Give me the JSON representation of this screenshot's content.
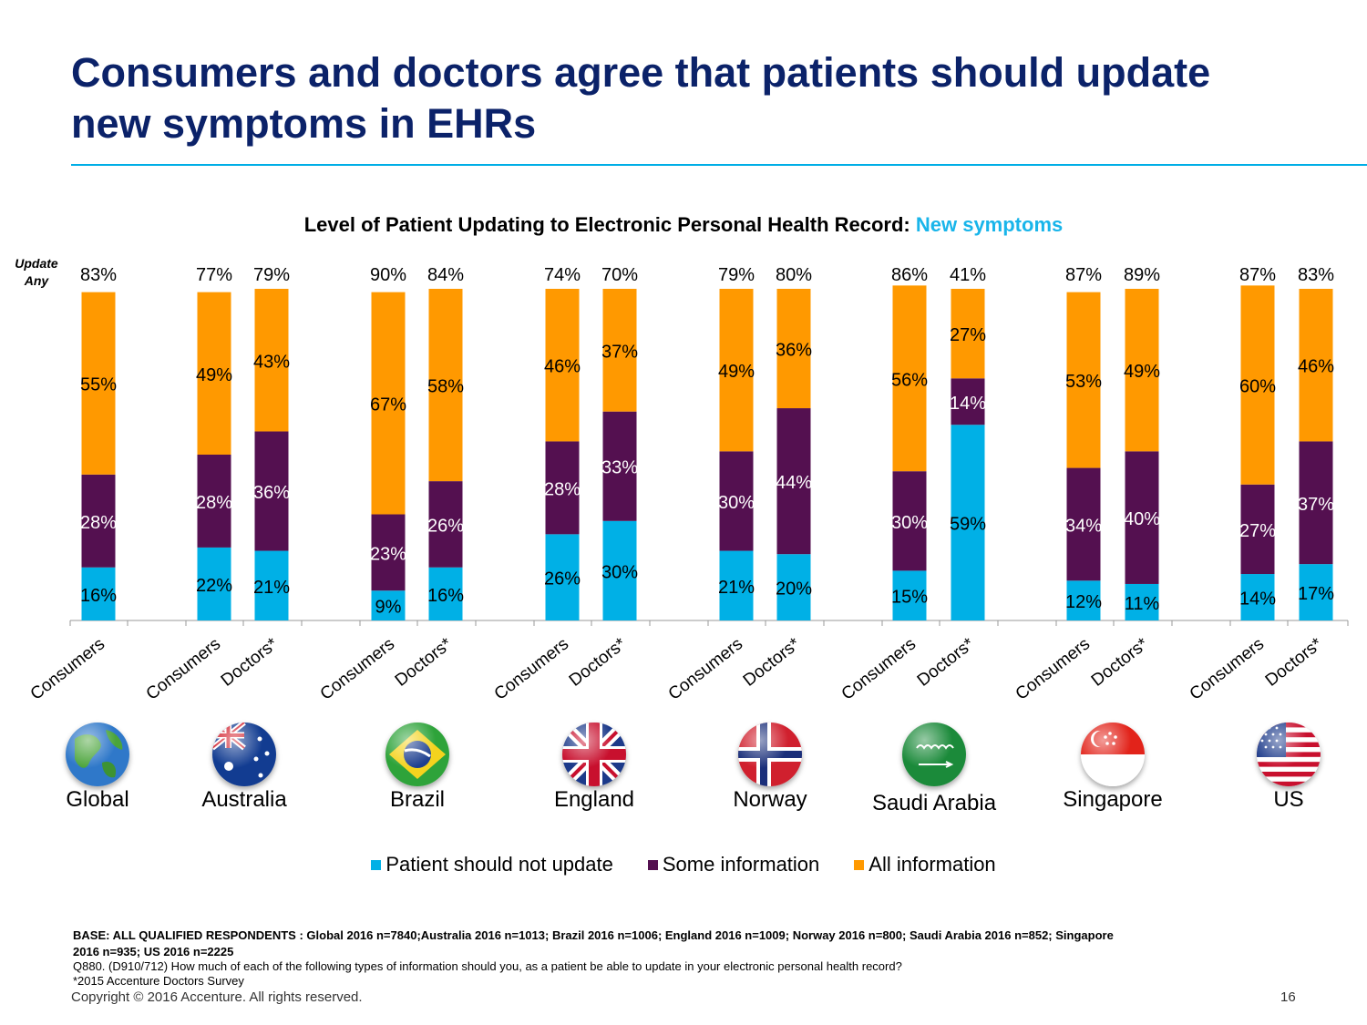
{
  "title": "Consumers and doctors agree that patients should update new symptoms in EHRs",
  "subtitle_prefix": "Level of Patient Updating to Electronic Personal Health Record: ",
  "subtitle_highlight": "New symptoms",
  "update_any_label": [
    "Update",
    "Any"
  ],
  "colors": {
    "not_update": "#00b0e6",
    "some": "#541050",
    "all": "#ff9900",
    "title": "#0b2269",
    "rule": "#00aee6"
  },
  "legend": [
    "Patient should not update",
    "Some information",
    "All information"
  ],
  "chart_data": {
    "type": "bar",
    "stacked": true,
    "ylim": [
      0,
      100
    ],
    "grid": false,
    "legend_position": "bottom",
    "series": [
      {
        "name": "Patient should not update"
      },
      {
        "name": "Some information"
      },
      {
        "name": "All information"
      }
    ],
    "groups": [
      {
        "country": "Global",
        "flag": "globe-icon",
        "bars": [
          {
            "label": "Consumers",
            "total": "83%",
            "values": [
              16,
              28,
              55
            ]
          }
        ]
      },
      {
        "country": "Australia",
        "flag": "australia-flag-icon",
        "bars": [
          {
            "label": "Consumers",
            "total": "77%",
            "values": [
              22,
              28,
              49
            ]
          },
          {
            "label": "Doctors*",
            "total": "79%",
            "values": [
              21,
              36,
              43
            ]
          }
        ]
      },
      {
        "country": "Brazil",
        "flag": "brazil-flag-icon",
        "bars": [
          {
            "label": "Consumers",
            "total": "90%",
            "values": [
              9,
              23,
              67
            ]
          },
          {
            "label": "Doctors*",
            "total": "84%",
            "values": [
              16,
              26,
              58
            ]
          }
        ]
      },
      {
        "country": "England",
        "flag": "uk-flag-icon",
        "bars": [
          {
            "label": "Consumers",
            "total": "74%",
            "values": [
              26,
              28,
              46
            ]
          },
          {
            "label": "Doctors*",
            "total": "70%",
            "values": [
              30,
              33,
              37
            ]
          }
        ]
      },
      {
        "country": "Norway",
        "flag": "norway-flag-icon",
        "bars": [
          {
            "label": "Consumers",
            "total": "79%",
            "values": [
              21,
              30,
              49
            ]
          },
          {
            "label": "Doctors*",
            "total": "80%",
            "values": [
              20,
              44,
              36
            ]
          }
        ]
      },
      {
        "country": "Saudi Arabia",
        "flag": "saudi-arabia-flag-icon",
        "bars": [
          {
            "label": "Consumers",
            "total": "86%",
            "values": [
              15,
              30,
              56
            ]
          },
          {
            "label": "Doctors*",
            "total": "41%",
            "values": [
              59,
              14,
              27
            ]
          }
        ]
      },
      {
        "country": "Singapore",
        "flag": "singapore-flag-icon",
        "bars": [
          {
            "label": "Consumers",
            "total": "87%",
            "values": [
              12,
              34,
              53
            ]
          },
          {
            "label": "Doctors*",
            "total": "89%",
            "values": [
              11,
              40,
              49
            ]
          }
        ]
      },
      {
        "country": "US",
        "flag": "us-flag-icon",
        "bars": [
          {
            "label": "Consumers",
            "total": "87%",
            "values": [
              14,
              27,
              60
            ]
          },
          {
            "label": "Doctors*",
            "total": "83%",
            "values": [
              17,
              37,
              46
            ]
          }
        ]
      }
    ]
  },
  "footnotes": {
    "base": "BASE: ALL QUALIFIED RESPONDENTS : Global 2016 n=7840;Australia 2016 n=1013; Brazil  2016 n=1006; England  2016 n=1009; Norway  2016 n=800; Saudi Arabia 2016 n=852; Singapore  2016 n=935; US 2016 n=2225",
    "question": "Q880. (D910/712)  How much of each of the following types of information should you, as a patient be able to update in your electronic personal health record?",
    "source": "*2015 Accenture Doctors Survey",
    "copyright": "Copyright © 2016 Accenture. All rights reserved.",
    "page_number": "16"
  }
}
